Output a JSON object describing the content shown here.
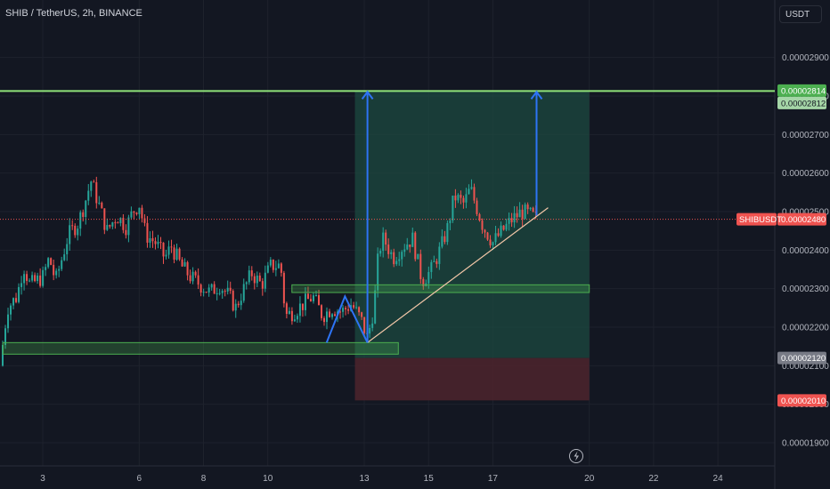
{
  "header": {
    "title": "SHIB / TetherUS, 2h, BINANCE",
    "currency_button": "USDT"
  },
  "colors": {
    "background": "#131722",
    "up": "#26a69a",
    "down": "#ef5350",
    "resistance_line": "#8fe37a",
    "profit_zone": "#1c4a40",
    "loss_zone": "#4a232c",
    "arrow": "#2e74f5",
    "trendline": "#f3c7a8",
    "zone_border": "#4caf50"
  },
  "icons": {
    "replay": "lightning-icon"
  },
  "chart_data": {
    "type": "candlestick",
    "symbol_label": "SHIBUSDT",
    "y_axis": {
      "ticks": [
        "0.00001900",
        "0.00002000",
        "0.00002100",
        "0.00002200",
        "0.00002300",
        "0.00002400",
        "0.00002500",
        "0.00002600",
        "0.00002700",
        "0.00002800",
        "0.00002900"
      ],
      "range": [
        1.84e-05,
        2.98e-05
      ]
    },
    "x_axis": {
      "ticks": [
        {
          "label": "3",
          "day": 3
        },
        {
          "label": "6",
          "day": 6
        },
        {
          "label": "8",
          "day": 8
        },
        {
          "label": "10",
          "day": 10
        },
        {
          "label": "13",
          "day": 13
        },
        {
          "label": "15",
          "day": 15
        },
        {
          "label": "17",
          "day": 17
        },
        {
          "label": "20",
          "day": 20
        },
        {
          "label": "22",
          "day": 22
        },
        {
          "label": "24",
          "day": 24
        }
      ],
      "range": [
        1.67,
        25.77
      ]
    },
    "price_tags": [
      {
        "text": "0.00002814",
        "value": 2.814e-05,
        "bg": "#4caf50",
        "fg": "#ffffff"
      },
      {
        "text": "0.00002812",
        "value": 2.812e-05,
        "bg": "#a5d6a7",
        "fg": "#131722"
      },
      {
        "text": "0.00002480",
        "value": 2.48e-05,
        "bg": "#ef5350",
        "fg": "#ffffff",
        "with_symbol": true
      },
      {
        "text": "0.00002120",
        "value": 2.12e-05,
        "bg": "#787b86",
        "fg": "#ffffff"
      },
      {
        "text": "0.00002010",
        "value": 2.01e-05,
        "bg": "#ef5350",
        "fg": "#ffffff"
      }
    ],
    "resistance_level": 2.813e-05,
    "current_price": 2.48e-05,
    "position": {
      "start_day": 12.71,
      "end_day": 20.0,
      "entry": 2.12e-05,
      "target": 2.813e-05,
      "stop": 2.01e-05
    },
    "demand_zones": [
      {
        "start_day": 1.76,
        "end_day": 14.06,
        "top": 2.16e-05,
        "bottom": 2.13e-05
      },
      {
        "start_day": 10.75,
        "end_day": 20.0,
        "top": 2.31e-05,
        "bottom": 2.29e-05
      }
    ],
    "trendline": {
      "start": [
        13.1,
        2.16e-05
      ],
      "end": [
        18.72,
        2.51e-05
      ]
    },
    "pattern_zigzag": [
      [
        11.83,
        2.16e-05
      ],
      [
        12.4,
        2.28e-05
      ],
      [
        13.1,
        2.16e-05
      ]
    ],
    "arrows": [
      {
        "day": 13.1,
        "from": 2.16e-05,
        "to": 2.813e-05
      },
      {
        "day": 18.36,
        "from": 2.49e-05,
        "to": 2.813e-05
      }
    ],
    "candles_per_day": 12,
    "start_day": 1.67,
    "anchor_closes": [
      [
        1.67,
        2.1e-05
      ],
      [
        1.9,
        2.25e-05
      ],
      [
        2.2,
        2.28e-05
      ],
      [
        2.4,
        2.36e-05
      ],
      [
        2.6,
        2.31e-05
      ],
      [
        3.0,
        2.33e-05
      ],
      [
        3.2,
        2.38e-05
      ],
      [
        3.4,
        2.32e-05
      ],
      [
        3.8,
        2.44e-05
      ],
      [
        4.1,
        2.47e-05
      ],
      [
        4.3,
        2.52e-05
      ],
      [
        4.5,
        2.58e-05
      ],
      [
        4.7,
        2.53e-05
      ],
      [
        5.0,
        2.45e-05
      ],
      [
        5.3,
        2.49e-05
      ],
      [
        5.6,
        2.46e-05
      ],
      [
        5.8,
        2.5e-05
      ],
      [
        6.0,
        2.52e-05
      ],
      [
        6.2,
        2.44e-05
      ],
      [
        6.5,
        2.42e-05
      ],
      [
        6.8,
        2.38e-05
      ],
      [
        7.0,
        2.41e-05
      ],
      [
        7.3,
        2.36e-05
      ],
      [
        7.6,
        2.33e-05
      ],
      [
        7.9,
        2.31e-05
      ],
      [
        8.2,
        2.29e-05
      ],
      [
        8.5,
        2.31e-05
      ],
      [
        8.8,
        2.28e-05
      ],
      [
        9.0,
        2.25e-05
      ],
      [
        9.2,
        2.29e-05
      ],
      [
        9.5,
        2.34e-05
      ],
      [
        9.8,
        2.31e-05
      ],
      [
        10.1,
        2.36e-05
      ],
      [
        10.4,
        2.36e-05
      ],
      [
        10.55,
        2.23e-05
      ],
      [
        10.8,
        2.24e-05
      ],
      [
        11.1,
        2.26e-05
      ],
      [
        11.4,
        2.28e-05
      ],
      [
        11.7,
        2.23e-05
      ],
      [
        12.0,
        2.25e-05
      ],
      [
        12.3,
        2.24e-05
      ],
      [
        12.6,
        2.26e-05
      ],
      [
        12.9,
        2.22e-05
      ],
      [
        13.1,
        2.17e-05
      ],
      [
        13.3,
        2.25e-05
      ],
      [
        13.45,
        2.4e-05
      ],
      [
        13.6,
        2.43e-05
      ],
      [
        13.9,
        2.38e-05
      ],
      [
        14.2,
        2.41e-05
      ],
      [
        14.5,
        2.43e-05
      ],
      [
        14.8,
        2.32e-05
      ],
      [
        15.1,
        2.35e-05
      ],
      [
        15.4,
        2.41e-05
      ],
      [
        15.6,
        2.46e-05
      ],
      [
        15.8,
        2.54e-05
      ],
      [
        16.1,
        2.52e-05
      ],
      [
        16.3,
        2.56e-05
      ],
      [
        16.5,
        2.51e-05
      ],
      [
        16.7,
        2.46e-05
      ],
      [
        17.0,
        2.42e-05
      ],
      [
        17.3,
        2.45e-05
      ],
      [
        17.6,
        2.48e-05
      ],
      [
        17.9,
        2.5e-05
      ],
      [
        18.2,
        2.49e-05
      ],
      [
        18.36,
        2.48e-05
      ]
    ]
  }
}
